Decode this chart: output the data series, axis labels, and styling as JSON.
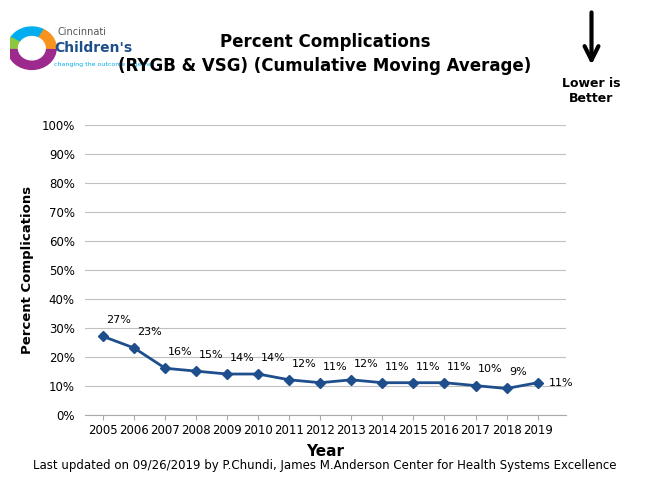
{
  "title_line1": "Percent Complications",
  "title_line2": "(RYGB & VSG) (Cumulative Moving Average)",
  "xlabel": "Year",
  "ylabel": "Percent Complications",
  "years": [
    2005,
    2006,
    2007,
    2008,
    2009,
    2010,
    2011,
    2012,
    2013,
    2014,
    2015,
    2016,
    2017,
    2018,
    2019
  ],
  "values": [
    0.27,
    0.23,
    0.16,
    0.15,
    0.14,
    0.14,
    0.12,
    0.11,
    0.12,
    0.11,
    0.11,
    0.11,
    0.1,
    0.09,
    0.11
  ],
  "labels": [
    "27%",
    "23%",
    "16%",
    "15%",
    "14%",
    "14%",
    "12%",
    "11%",
    "12%",
    "11%",
    "11%",
    "11%",
    "10%",
    "9%",
    "11%"
  ],
  "line_color": "#1F4E8C",
  "marker_color": "#1F4E8C",
  "ylim": [
    0,
    1.0
  ],
  "yticks": [
    0.0,
    0.1,
    0.2,
    0.3,
    0.4,
    0.5,
    0.6,
    0.7,
    0.8,
    0.9,
    1.0
  ],
  "ytick_labels": [
    "0%",
    "10%",
    "20%",
    "30%",
    "40%",
    "50%",
    "60%",
    "70%",
    "80%",
    "90%",
    "100%"
  ],
  "footer": "Last updated on 09/26/2019 by P.Chundi, James M.Anderson Center for Health Systems Excellence",
  "lower_is_better_text": "Lower is\nBetter",
  "background_color": "#ffffff",
  "grid_color": "#c0c0c0",
  "fig_width": 6.5,
  "fig_height": 4.82,
  "logo_text_line1": "Cincinnati",
  "logo_text_line2": "Children's",
  "logo_text_line3": "changing the outcome together"
}
